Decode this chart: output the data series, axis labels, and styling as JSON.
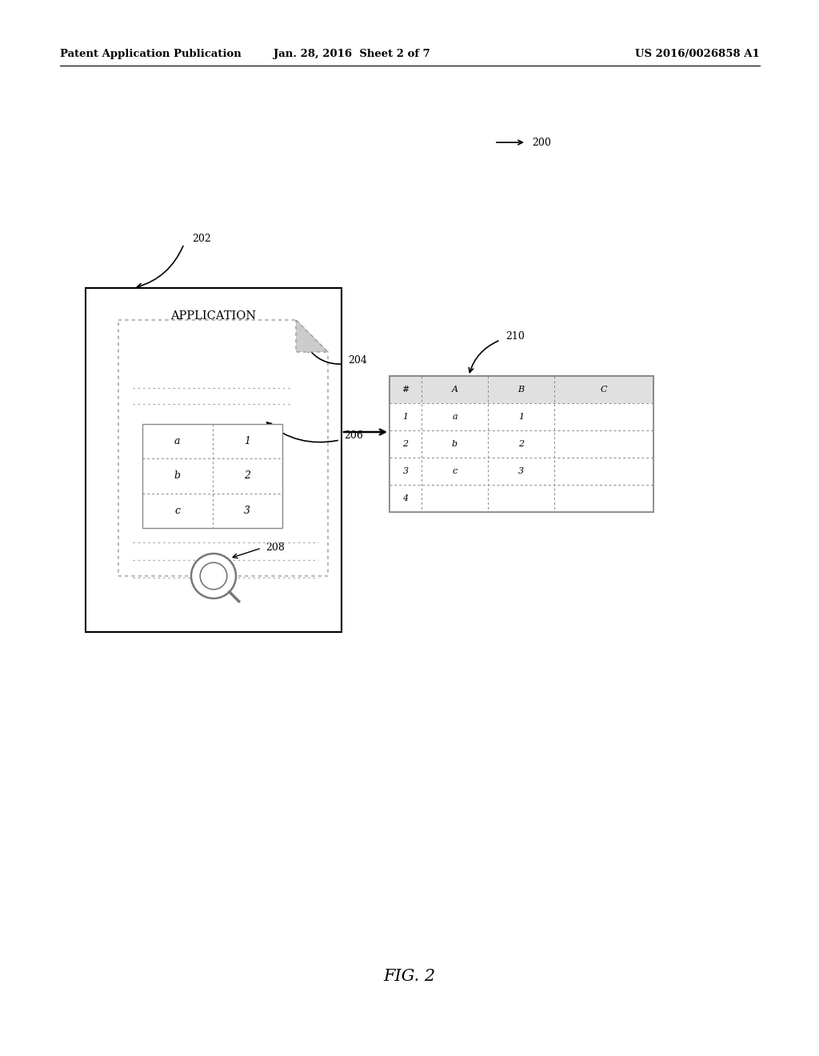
{
  "bg_color": "#ffffff",
  "header_text_left": "Patent Application Publication",
  "header_text_mid": "Jan. 28, 2016  Sheet 2 of 7",
  "header_text_right": "US 2016/0026858 A1",
  "fig_label": "FIG. 2",
  "label_200": "200",
  "label_202": "202",
  "label_204": "204",
  "label_206": "206",
  "label_208": "208",
  "label_210": "210",
  "app_label": "APPLICATION",
  "small_table_data": [
    [
      "a",
      "1"
    ],
    [
      "b",
      "2"
    ],
    [
      "c",
      "3"
    ]
  ],
  "big_table_header": [
    "#",
    "A",
    "B",
    "C"
  ],
  "big_table_data": [
    [
      "1",
      "a",
      "1",
      ""
    ],
    [
      "2",
      "b",
      "2",
      ""
    ],
    [
      "3",
      "c",
      "3",
      ""
    ],
    [
      "4",
      "",
      "",
      ""
    ]
  ]
}
